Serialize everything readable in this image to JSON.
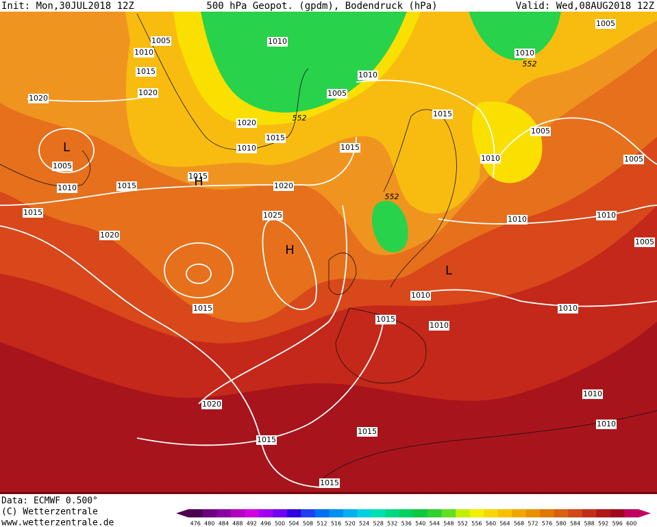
{
  "header": {
    "init": "Init: Mon,30JUL2018 12Z",
    "title": "500 hPa Geopot. (gpdm), Bodendruck (hPa)",
    "valid": "Valid: Wed,08AUG2018 12Z"
  },
  "map": {
    "isobar_labels": [
      "1005",
      "1010",
      "1015",
      "1020",
      "1020",
      "1005",
      "1010",
      "1015",
      "1015",
      "1020",
      "1015",
      "1020",
      "1015",
      "1010",
      "1010",
      "1005",
      "1010",
      "1015",
      "1020",
      "1025",
      "1015",
      "1020",
      "1015",
      "1015",
      "1015",
      "1015",
      "1010",
      "1010",
      "1015",
      "1005",
      "1010",
      "1010",
      "1010",
      "1005",
      "1005",
      "1010",
      "1010",
      "1010",
      "1005",
      "1010"
    ],
    "pressure_centers": [
      "L",
      "H",
      "H",
      "L"
    ],
    "contour_552_labels": [
      "552",
      "552",
      "552"
    ]
  },
  "footer": {
    "data": "Data: ECMWF  0.500°",
    "copyright": "(C) Wetterzentrale",
    "url": "www.wetterzentrale.de"
  },
  "scale": {
    "labels": [
      476,
      480,
      484,
      488,
      492,
      496,
      500,
      504,
      508,
      512,
      516,
      520,
      524,
      528,
      532,
      536,
      540,
      544,
      548,
      552,
      556,
      560,
      564,
      568,
      572,
      576,
      580,
      584,
      588,
      592,
      596,
      600
    ],
    "colors": [
      "#4b0050",
      "#6a0080",
      "#8a00a0",
      "#b000c0",
      "#d000e0",
      "#a000f0",
      "#7000f0",
      "#3000e0",
      "#2040f0",
      "#0070f0",
      "#0090f0",
      "#00b0f0",
      "#00d0e0",
      "#00e0b0",
      "#00d880",
      "#00d060",
      "#10c840",
      "#30d030",
      "#60e020",
      "#c0f000",
      "#f0f000",
      "#f8d800",
      "#f8c000",
      "#f0a800",
      "#e89000",
      "#e07800",
      "#d86010",
      "#d04818",
      "#c03018",
      "#b01818",
      "#a00820",
      "#c00060"
    ]
  }
}
